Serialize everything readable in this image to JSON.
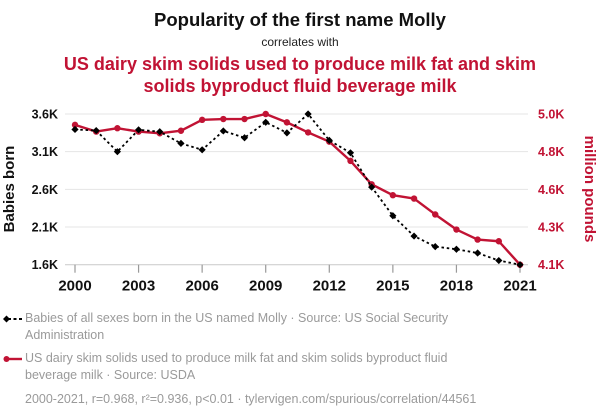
{
  "header": {
    "title": "Popularity of the first name Molly",
    "connector": "correlates with",
    "subtitle": "US dairy skim solids used to produce milk fat and skim solids byproduct fluid beverage milk"
  },
  "chart_data": {
    "type": "line",
    "title": "Popularity of the first name Molly correlates with US dairy skim solids used to produce milk fat and skim solids byproduct fluid beverage milk",
    "x": [
      2000,
      2001,
      2002,
      2003,
      2004,
      2005,
      2006,
      2007,
      2008,
      2009,
      2010,
      2011,
      2012,
      2013,
      2014,
      2015,
      2016,
      2017,
      2018,
      2019,
      2020,
      2021
    ],
    "series": [
      {
        "name": "Babies of all sexes born in the US named Molly",
        "axis": "left",
        "style": "dashed-diamond",
        "color": "#000000",
        "values": [
          3395,
          3380,
          3100,
          3390,
          3365,
          3210,
          3125,
          3375,
          3285,
          3490,
          3350,
          3600,
          3250,
          3085,
          2630,
          2250,
          1980,
          1840,
          1805,
          1755,
          1655,
          1600
        ]
      },
      {
        "name": "US dairy skim solids used to produce milk fat and skim solids byproduct fluid beverage milk",
        "axis": "right",
        "style": "solid-circle",
        "color": "#c11334",
        "values": [
          4935,
          4895,
          4915,
          4895,
          4885,
          4900,
          4965,
          4970,
          4970,
          5000,
          4950,
          4890,
          4835,
          4720,
          4580,
          4515,
          4495,
          4400,
          4310,
          4250,
          4240,
          4100
        ]
      }
    ],
    "left_axis": {
      "label": "Babies born",
      "tick_labels": [
        "3.6K",
        "3.1K",
        "2.6K",
        "2.1K",
        "1.6K"
      ],
      "tick_values": [
        3600,
        3100,
        2600,
        2100,
        1600
      ],
      "range": [
        1600,
        3600
      ]
    },
    "right_axis": {
      "label": "million pounds",
      "tick_labels": [
        "5.0K",
        "4.8K",
        "4.6K",
        "4.3K",
        "4.1K"
      ],
      "range": [
        4100,
        5000
      ]
    },
    "x_axis": {
      "tick_labels": [
        "2000",
        "2003",
        "2006",
        "2009",
        "2012",
        "2015",
        "2018",
        "2021"
      ],
      "tick_values": [
        2000,
        2003,
        2006,
        2009,
        2012,
        2015,
        2018,
        2021
      ],
      "range": [
        2000,
        2021
      ]
    },
    "grid": true,
    "legend_position": "bottom"
  },
  "legend": {
    "items": [
      {
        "label": "Babies of all sexes born in the US named Molly · Source: US Social Security Administration",
        "color": "#000000",
        "line_style": "dashed"
      },
      {
        "label": "US dairy skim solids used to produce milk fat and skim solids byproduct fluid beverage milk · Source: USDA",
        "color": "#c11334",
        "line_style": "solid"
      }
    ]
  },
  "footer": {
    "text": "2000-2021, r=0.968, r²=0.936, p<0.01 · tylervigen.com/spurious/correlation/44561"
  },
  "colors": {
    "accent_red": "#c11334",
    "muted_text": "#9a9a9a",
    "grid": "#e5e5e5",
    "axis_line": "#c9c9c9",
    "tick_mark": "#999999"
  }
}
